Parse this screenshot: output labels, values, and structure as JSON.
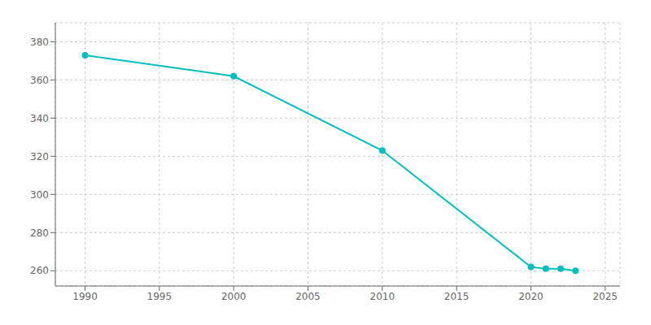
{
  "chart_data": {
    "type": "line",
    "x": [
      1990,
      2000,
      2010,
      2020,
      2021,
      2022,
      2023
    ],
    "values": [
      373,
      362,
      323,
      262,
      261,
      261,
      260
    ],
    "color": "#00BFBF",
    "marker": "circle",
    "xlim": [
      1988,
      2026
    ],
    "ylim": [
      252,
      390
    ],
    "xticks": [
      1990,
      1995,
      2000,
      2005,
      2010,
      2015,
      2020,
      2025
    ],
    "yticks": [
      260,
      280,
      300,
      320,
      340,
      360,
      380
    ],
    "grid": true
  }
}
